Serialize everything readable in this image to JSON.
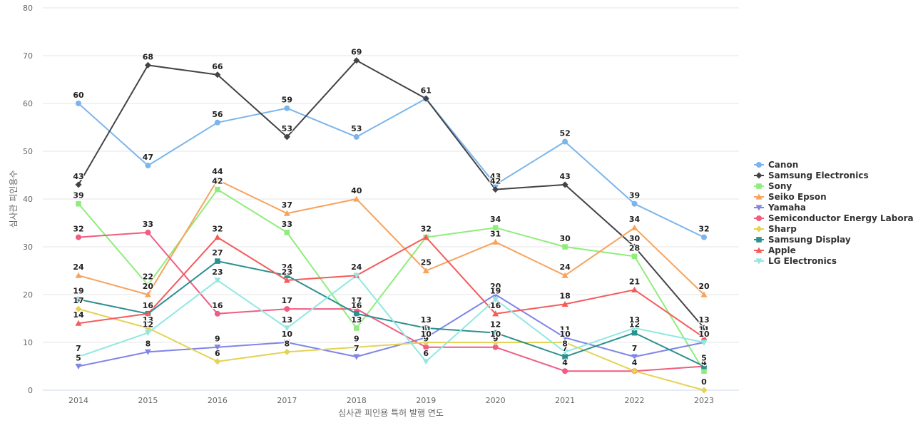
{
  "chart_data": {
    "type": "line",
    "title": "",
    "xlabel": "심사관 피인용 특허 발행 연도",
    "ylabel": "심사관 피인용수",
    "ylim": [
      0,
      80
    ],
    "yticks": [
      0,
      10,
      20,
      30,
      40,
      50,
      60,
      70,
      80
    ],
    "grid": true,
    "legend_position": "right",
    "categories": [
      "2014",
      "2015",
      "2016",
      "2017",
      "2018",
      "2019",
      "2020",
      "2021",
      "2022",
      "2023"
    ],
    "series": [
      {
        "name": "Canon",
        "color": "#7cb5ec",
        "marker": "circle",
        "values": [
          60,
          47,
          56,
          59,
          53,
          61,
          43,
          52,
          39,
          32
        ]
      },
      {
        "name": "Samsung Electronics",
        "color": "#434348",
        "marker": "diamond",
        "values": [
          43,
          68,
          66,
          53,
          69,
          61,
          42,
          43,
          30,
          13
        ]
      },
      {
        "name": "Sony",
        "color": "#90ed7d",
        "marker": "square",
        "values": [
          39,
          22,
          42,
          33,
          13,
          32,
          34,
          30,
          28,
          4
        ]
      },
      {
        "name": "Seiko Epson",
        "color": "#f7a35c",
        "marker": "triangle",
        "values": [
          24,
          20,
          44,
          37,
          40,
          25,
          31,
          24,
          34,
          20
        ]
      },
      {
        "name": "Yamaha",
        "color": "#8085e9",
        "marker": "triangle-down",
        "values": [
          5,
          8,
          9,
          10,
          7,
          11,
          20,
          11,
          7,
          10
        ]
      },
      {
        "name": "Semiconductor Energy Labora...",
        "color": "#f15c80",
        "marker": "circle",
        "values": [
          32,
          33,
          16,
          17,
          17,
          9,
          9,
          4,
          4,
          5
        ]
      },
      {
        "name": "Sharp",
        "color": "#e4d354",
        "marker": "diamond",
        "values": [
          17,
          13,
          6,
          8,
          9,
          10,
          10,
          10,
          4,
          0
        ]
      },
      {
        "name": "Samsung Display",
        "color": "#2b908f",
        "marker": "square",
        "values": [
          19,
          16,
          27,
          24,
          16,
          13,
          12,
          7,
          12,
          5
        ]
      },
      {
        "name": "Apple",
        "color": "#f45b5b",
        "marker": "triangle",
        "values": [
          14,
          16,
          32,
          23,
          24,
          32,
          16,
          18,
          21,
          11
        ]
      },
      {
        "name": "LG Electronics",
        "color": "#91e8e1",
        "marker": "triangle-down",
        "values": [
          7,
          12,
          23,
          13,
          24,
          6,
          19,
          8,
          13,
          10
        ]
      }
    ]
  }
}
